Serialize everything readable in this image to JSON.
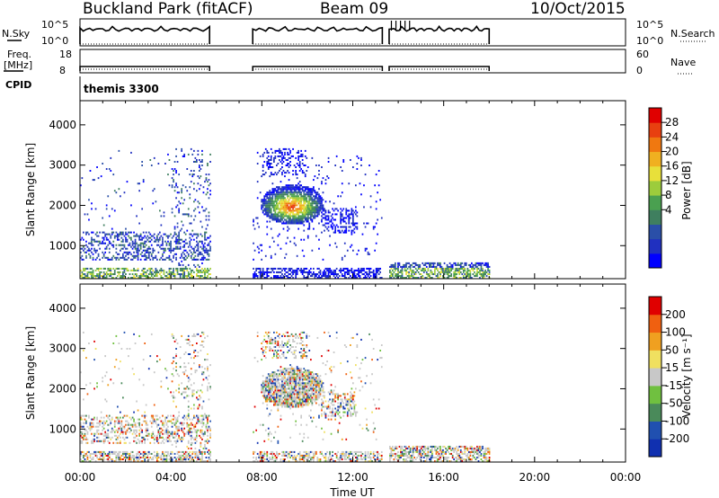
{
  "header": {
    "station": "Buckland Park (fitACF)",
    "beam": "Beam 09",
    "date": "10/Oct/2015"
  },
  "status_panels": {
    "nsky_label": "N.Sky",
    "nsky_ticks": [
      "10^5",
      "10^0"
    ],
    "nsearch_label": "N.Search",
    "nsearch_ticks": [
      "10^5",
      "10^0"
    ],
    "freq_label_line1": "Freq.",
    "freq_label_line2": "[MHz]",
    "freq_ticks": [
      "18",
      "8"
    ],
    "nave_label": "Nave",
    "nave_ticks": [
      "60",
      "0"
    ],
    "cpid_label": "CPID",
    "cpid_value": "themis 3300"
  },
  "chart_data": [
    {
      "type": "heatmap",
      "name": "power",
      "ylabel": "Slant Range [km]",
      "y_ticks": [
        1000,
        2000,
        3000,
        4000
      ],
      "ylim": [
        180,
        4600
      ],
      "xlim": [
        0,
        24
      ],
      "colorbar": {
        "label": "Power [dB]",
        "ticks": [
          "28",
          "24",
          "20",
          "16",
          "12",
          "8",
          "4"
        ],
        "colors": [
          "#0000ff",
          "#2030c0",
          "#2a4fa8",
          "#3f7f5f",
          "#4aa050",
          "#9ccc3c",
          "#e8e03a",
          "#f0b020",
          "#f07810",
          "#e84010",
          "#e00000"
        ]
      },
      "data_regions": [
        {
          "t_start": 0.0,
          "t_end": 5.7,
          "r_start": 180,
          "r_end": 3400,
          "dominant": "low"
        },
        {
          "t_start": 7.6,
          "t_end": 13.3,
          "r_start": 180,
          "r_end": 3400,
          "dominant": "high"
        },
        {
          "t_start": 13.6,
          "t_end": 18.0,
          "r_start": 180,
          "r_end": 550,
          "dominant": "low"
        }
      ]
    },
    {
      "type": "heatmap",
      "name": "velocity",
      "ylabel": "Slant Range [km]",
      "y_ticks": [
        1000,
        2000,
        3000,
        4000
      ],
      "ylim": [
        180,
        4600
      ],
      "xlim": [
        0,
        24
      ],
      "xlabel": "Time UT",
      "x_ticks": [
        "00:00",
        "04:00",
        "08:00",
        "12:00",
        "16:00",
        "20:00",
        "00:00"
      ],
      "colorbar": {
        "label": "Velocity [m s⁻¹]",
        "ticks": [
          "200",
          "100",
          "50",
          "15",
          "-15",
          "-50",
          "-100",
          "-200"
        ],
        "colors": [
          "#1030b0",
          "#2050b0",
          "#4a8a5a",
          "#70c040",
          "#c8c8c8",
          "#f0e060",
          "#f0a020",
          "#f06010",
          "#e00000"
        ]
      },
      "data_regions": [
        {
          "t_start": 0.0,
          "t_end": 5.7,
          "r_start": 180,
          "r_end": 3400
        },
        {
          "t_start": 7.6,
          "t_end": 13.3,
          "r_start": 180,
          "r_end": 3400
        },
        {
          "t_start": 13.6,
          "t_end": 18.0,
          "r_start": 180,
          "r_end": 550
        }
      ]
    }
  ]
}
